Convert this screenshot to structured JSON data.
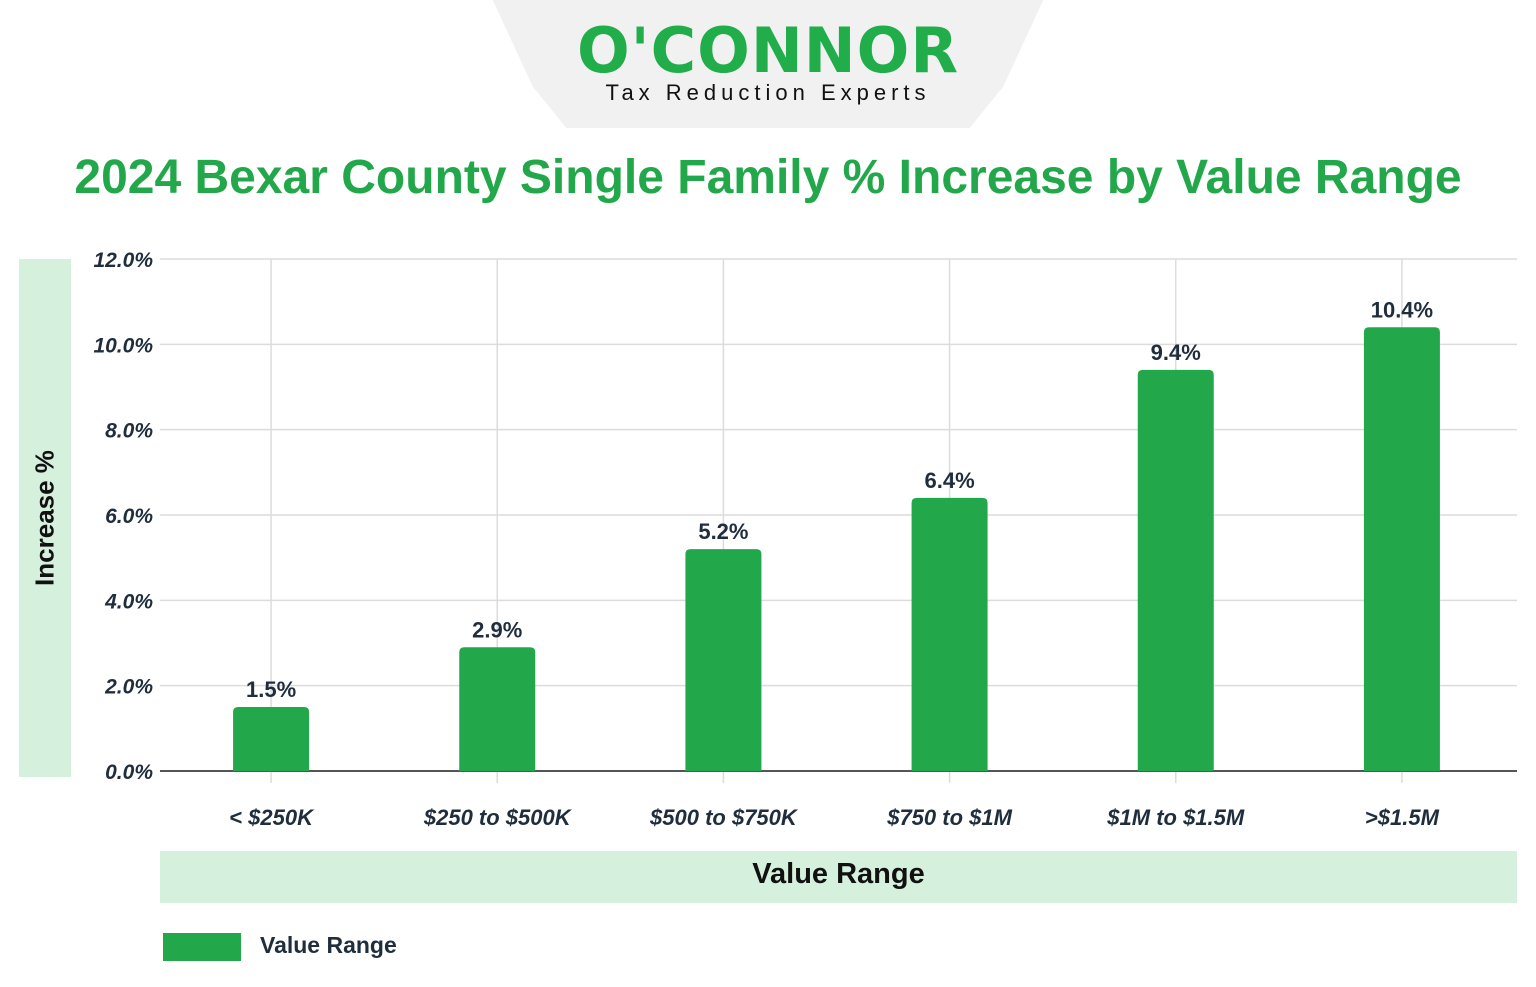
{
  "logo": {
    "name": "O'CONNOR",
    "tagline": "Tax Reduction Experts"
  },
  "colors": {
    "bar": "#22a84a",
    "title": "#22a84a",
    "band": "#d5f0dc",
    "text": "#1f2d3d"
  },
  "chart_data": {
    "type": "bar",
    "title": "2024 Bexar County Single Family % Increase by Value Range",
    "xlabel": "Value Range",
    "ylabel": "Increase %",
    "categories": [
      "< $250K",
      "$250 to $500K",
      "$500 to $750K",
      "$750 to $1M",
      "$1M to $1.5M",
      ">$1.5M"
    ],
    "series": [
      {
        "name": "Value Range",
        "values": [
          1.5,
          2.9,
          5.2,
          6.4,
          9.4,
          10.4
        ]
      }
    ],
    "data_labels": [
      "1.5%",
      "2.9%",
      "5.2%",
      "6.4%",
      "9.4%",
      "10.4%"
    ],
    "yticks": [
      "0.0%",
      "2.0%",
      "4.0%",
      "6.0%",
      "8.0%",
      "10.0%",
      "12.0%"
    ],
    "ylim": [
      0,
      12
    ],
    "grid": true,
    "legend": "bottom-left"
  }
}
